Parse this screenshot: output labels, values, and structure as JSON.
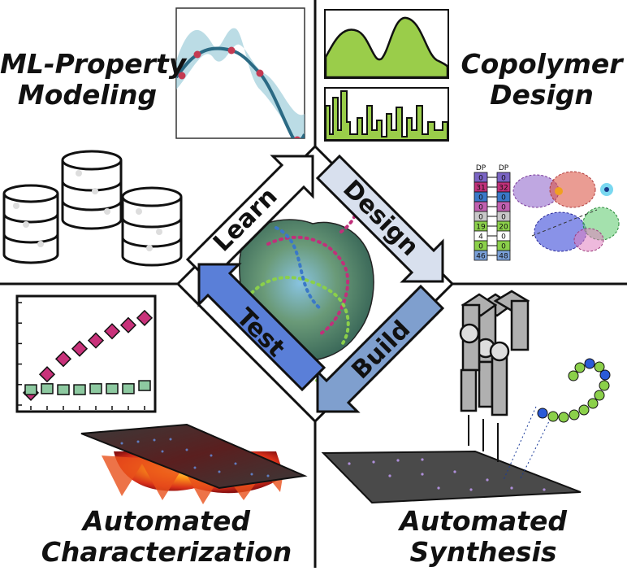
{
  "quadrants": {
    "ml_property_modeling": {
      "line1": "ML-Property",
      "line2": "Modeling"
    },
    "copolymer_design": {
      "line1": "Copolymer",
      "line2": "Design"
    },
    "automated_characterization": {
      "line1": "Automated",
      "line2": "Characterization"
    },
    "automated_synthesis": {
      "line1": "Automated",
      "line2": "Synthesis"
    }
  },
  "cycle": {
    "learn": "Learn",
    "design": "Design",
    "build": "Build",
    "test": "Test"
  },
  "sequence_table": {
    "header": "DP",
    "left": [
      "0",
      "31",
      "0",
      "0",
      "0",
      "19",
      "4",
      "0",
      "46"
    ],
    "right": [
      "0",
      "32",
      "0",
      "0",
      "0",
      "20",
      "0",
      "0",
      "48"
    ],
    "row_colors": [
      "#7a64c4",
      "#c0307a",
      "#3a78c8",
      "#c060b0",
      "#c8c8c8",
      "#8bd04a",
      "#ffffff",
      "#8bd04a",
      "#7aa0d8"
    ]
  },
  "characterization_plot": {
    "series": [
      {
        "color": "#c8327a",
        "values": [
          0.12,
          0.3,
          0.45,
          0.55,
          0.63,
          0.72,
          0.78,
          0.85
        ]
      },
      {
        "color": "#8dc9a0",
        "values": [
          0.15,
          0.16,
          0.15,
          0.15,
          0.16,
          0.16,
          0.16,
          0.19
        ]
      }
    ]
  }
}
